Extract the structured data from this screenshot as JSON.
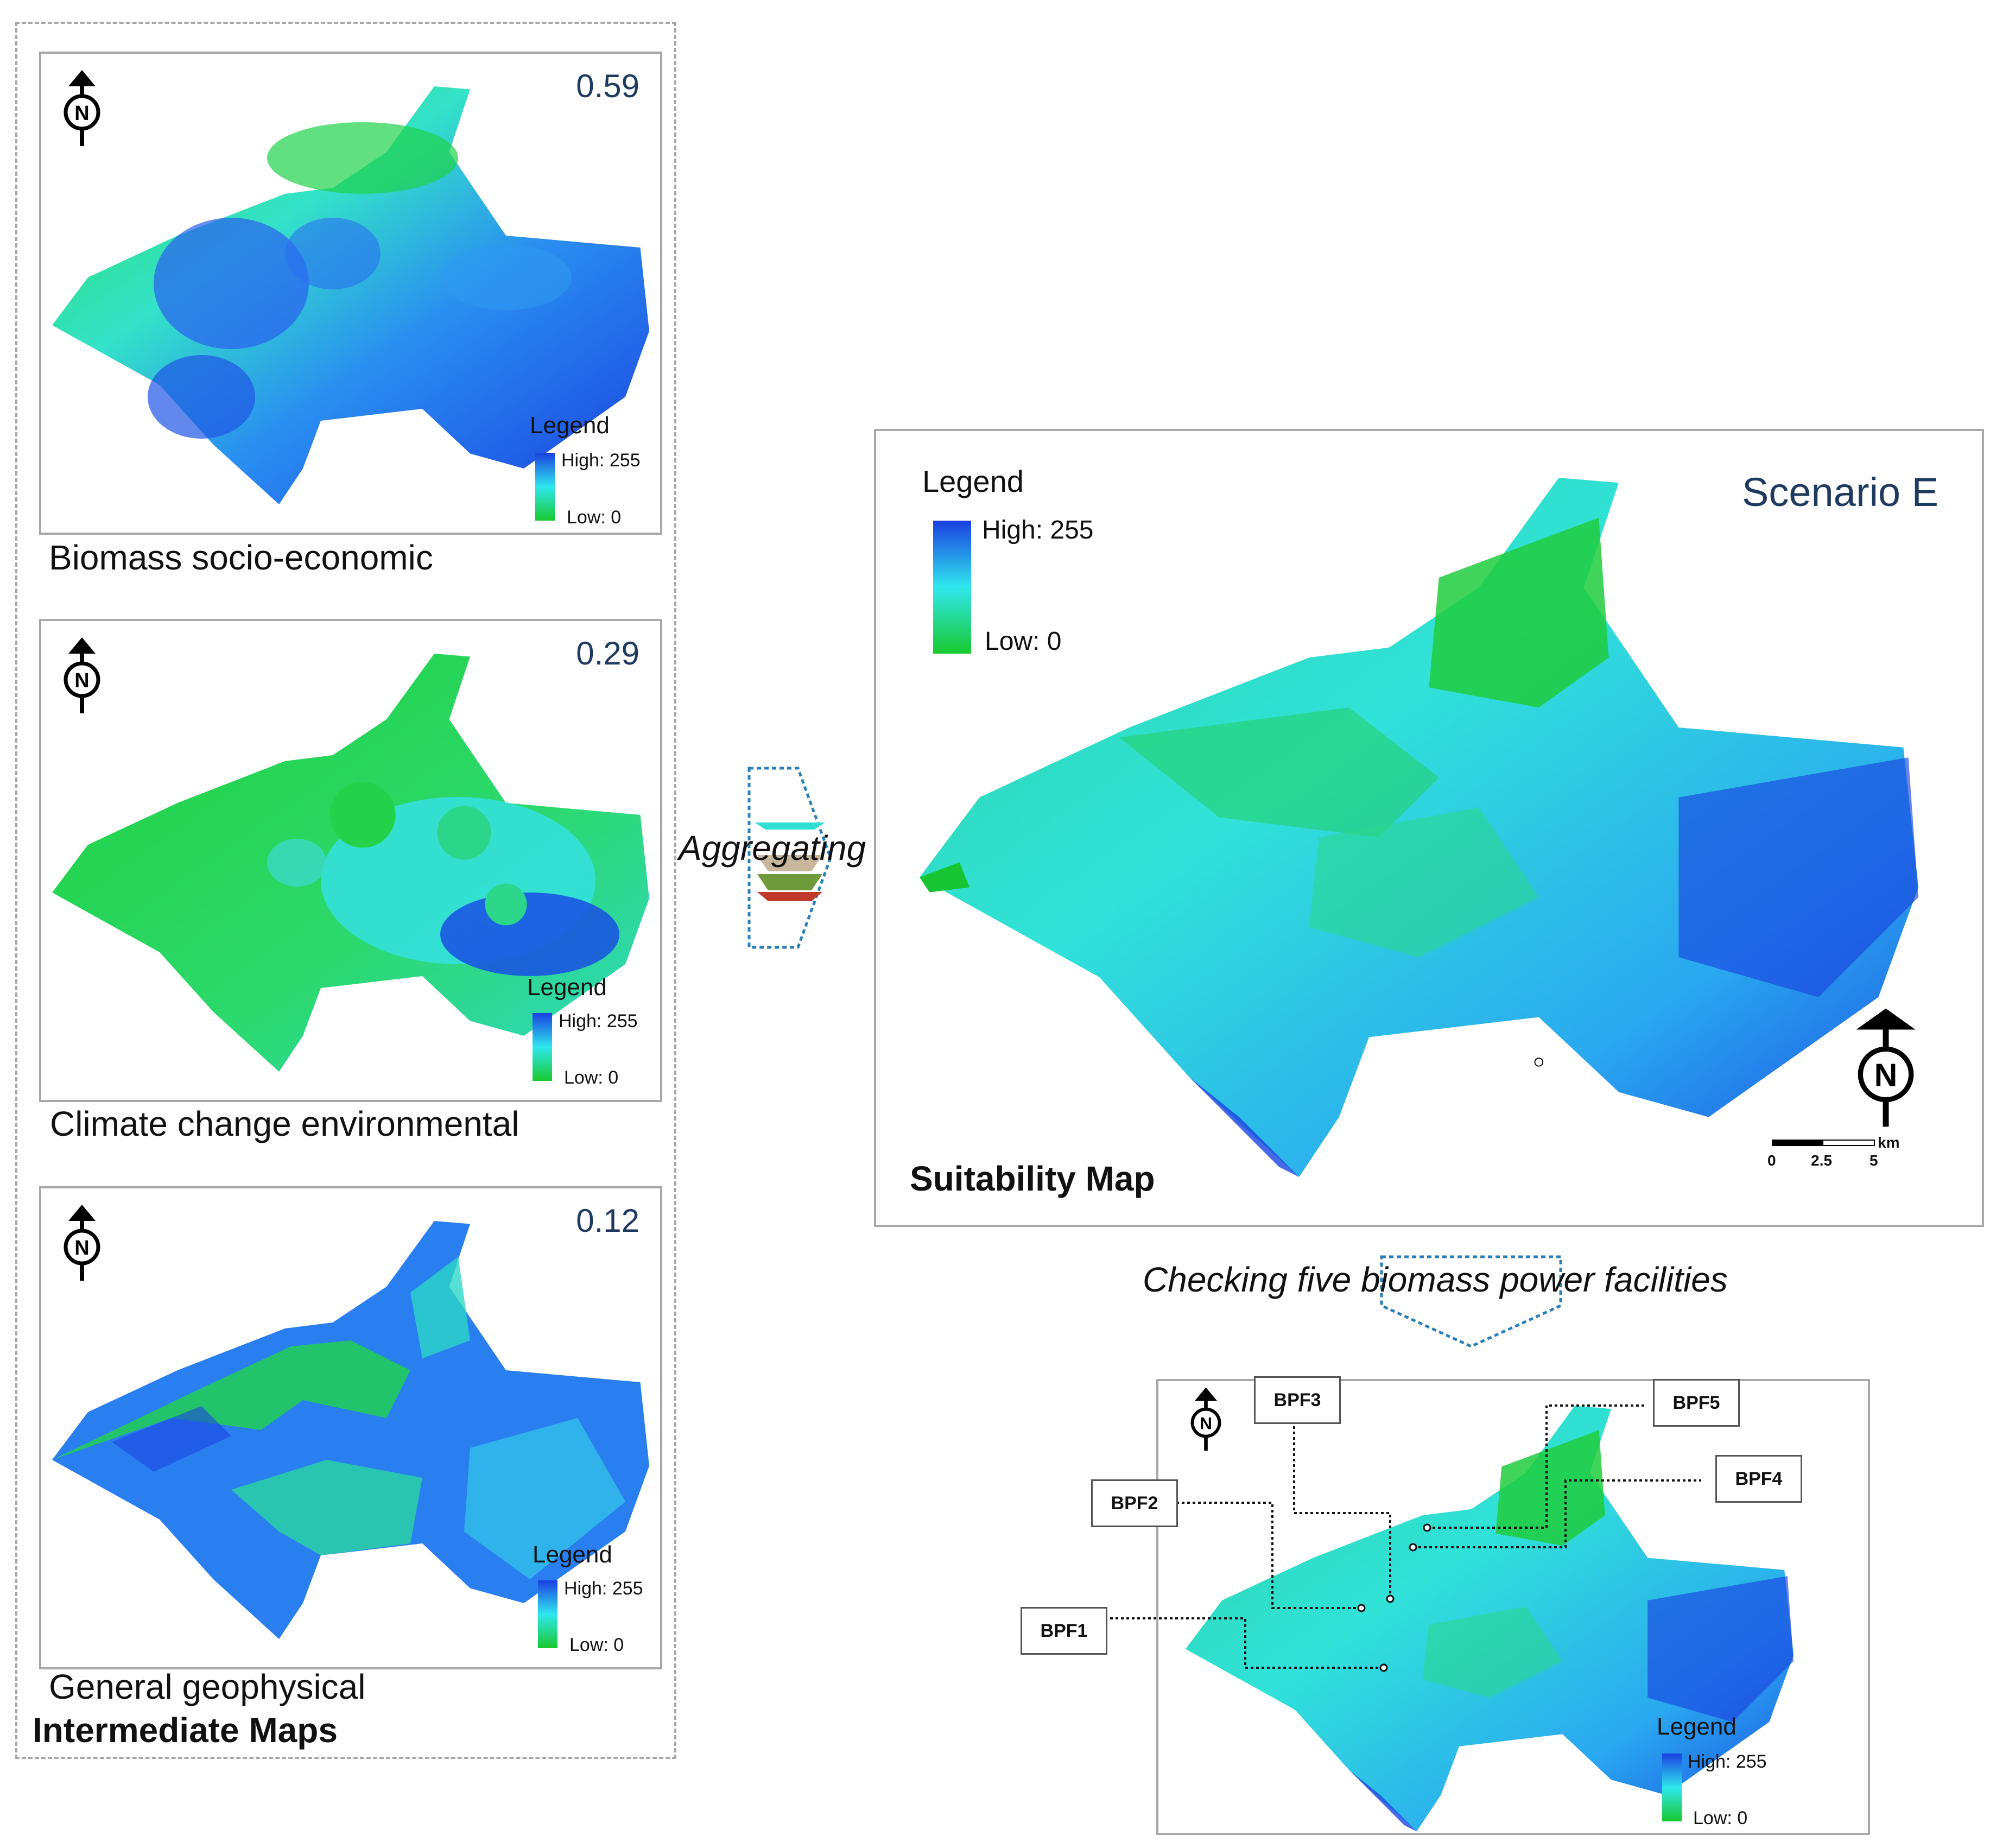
{
  "intermediate": {
    "group_title": "Intermediate Maps",
    "maps": [
      {
        "weight": "0.59",
        "caption": "Biomass socio-economic",
        "legend_title": "Legend",
        "legend_high": "High: 255",
        "legend_low": "Low: 0"
      },
      {
        "weight": "0.29",
        "caption": "Climate change environmental",
        "legend_title": "Legend",
        "legend_high": "High: 255",
        "legend_low": "Low: 0"
      },
      {
        "weight": "0.12",
        "caption": "General geophysical",
        "legend_title": "Legend",
        "legend_high": "High: 255",
        "legend_low": "Low: 0"
      }
    ]
  },
  "aggregating_label": "Aggregating",
  "suitability": {
    "title": "Suitability Map",
    "scenario": "Scenario E",
    "legend_title": "Legend",
    "legend_high": "High: 255",
    "legend_low": "Low: 0",
    "scale_unit": "km",
    "scale_ticks": [
      "0",
      "2.5",
      "5"
    ]
  },
  "checking_label": "Checking five biomass power facilities",
  "facilities_map": {
    "legend_title": "Legend",
    "legend_high": "High: 255",
    "legend_low": "Low: 0",
    "labels": [
      "BPF1",
      "BPF2",
      "BPF3",
      "BPF4",
      "BPF5"
    ]
  },
  "north_label": "N",
  "colors": {
    "high": "#1a3fe0",
    "mid": "#2fe7ee",
    "low": "#19c92e",
    "title": "#1f3a5f"
  }
}
